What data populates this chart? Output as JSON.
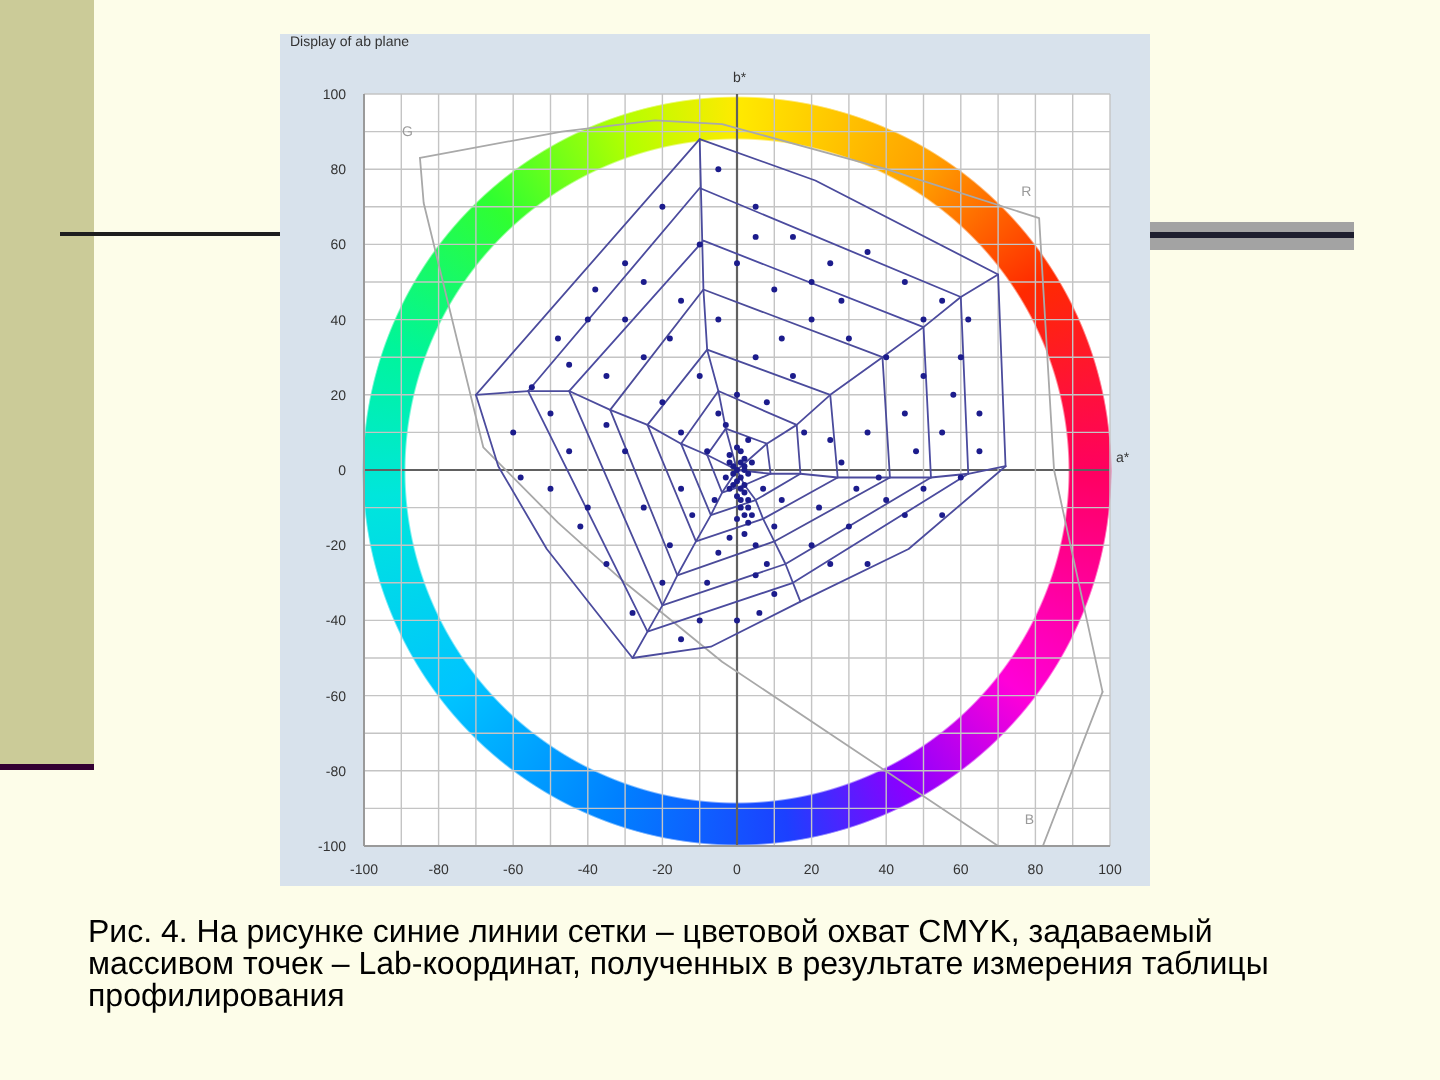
{
  "chart_data": {
    "type": "scatter",
    "title": "Display of ab plane",
    "xlabel": "a*",
    "ylabel": "b*",
    "xlim": [
      -100,
      100
    ],
    "ylim": [
      -100,
      100
    ],
    "xticks": [
      -100,
      {
        "value": -90,
        "label": null
      },
      -80,
      {
        "value": -70,
        "label": null
      },
      -60,
      {
        "value": -50,
        "label": null
      },
      -40,
      {
        "value": -30,
        "label": null
      },
      -20,
      {
        "value": -10,
        "label": null
      },
      0,
      {
        "value": 10,
        "label": null
      },
      20,
      {
        "value": 30,
        "label": null
      },
      40,
      {
        "value": 50,
        "label": null
      },
      60,
      {
        "value": 70,
        "label": null
      },
      80,
      {
        "value": 90,
        "label": null
      },
      100
    ],
    "yticks": [
      -100,
      {
        "value": -90,
        "label": null
      },
      -80,
      {
        "value": -70,
        "label": null
      },
      -60,
      {
        "value": -50,
        "label": null
      },
      -40,
      {
        "value": -30,
        "label": null
      },
      -20,
      {
        "value": -10,
        "label": null
      },
      0,
      {
        "value": 10,
        "label": null
      },
      20,
      {
        "value": 30,
        "label": null
      },
      40,
      {
        "value": 50,
        "label": null
      },
      60,
      {
        "value": 70,
        "label": null
      },
      80,
      {
        "value": 90,
        "label": null
      },
      100
    ],
    "grid": true,
    "marker": "circle",
    "annotations": [
      {
        "text": "G",
        "x": -85,
        "y": 83
      },
      {
        "text": "R",
        "x": 81,
        "y": 67
      },
      {
        "text": "B",
        "x": 82,
        "y": -100
      },
      "Рис. 4. На рисунке синие линии сетки – цветовой охват CMYK, задаваемый массивом точек – Lab-координат, полученных в результате измерения таблицы профилирования"
    ],
    "series": [
      {
        "type": "line",
        "marker": "none",
        "color": "#a8a8a8",
        "x": [
          -85,
          -84,
          -68,
          -48,
          -30,
          -4,
          70
        ],
        "values": [
          83,
          71,
          6,
          -14,
          -30,
          -51,
          -100
        ]
      },
      {
        "type": "line",
        "marker": "none",
        "color": "#a9a9a9",
        "x": [
          -85,
          -47,
          -22,
          -4,
          40,
          81,
          85,
          98
        ],
        "values": [
          83,
          90,
          93,
          92,
          80,
          67,
          0,
          -59
        ]
      },
      {
        "type": "line",
        "marker": "none",
        "color": "#a7a7a7",
        "x": [
          82,
          98
        ],
        "values": [
          -100,
          -59
        ]
      },
      {
        "type": "line",
        "marker": "none",
        "color": "#4b4b9c",
        "x": [
          -70,
          -10,
          21,
          70,
          72
        ],
        "values": [
          20,
          88,
          77,
          52,
          1
        ]
      },
      {
        "type": "line",
        "marker": "none",
        "color": "#4b4b9d",
        "x": [
          -70,
          -64,
          -51,
          -28,
          -7,
          17,
          46,
          72
        ],
        "values": [
          20,
          1,
          -21,
          -50,
          -47,
          -35,
          -21,
          1
        ]
      },
      {
        "type": "line",
        "marker": "none",
        "color": "#4b4b9e",
        "x": [
          -56,
          -10,
          60,
          62
        ],
        "values": [
          21,
          75,
          46,
          -1
        ]
      },
      {
        "type": "line",
        "marker": "none",
        "color": "#4b4b9f",
        "x": [
          -56,
          -24,
          15,
          62
        ],
        "values": [
          21,
          -43,
          -30,
          -1
        ]
      },
      {
        "type": "line",
        "marker": "none",
        "color": "#4b4ba0",
        "x": [
          -45,
          -9,
          50,
          52
        ],
        "values": [
          21,
          61,
          38,
          -2
        ]
      },
      {
        "type": "line",
        "marker": "none",
        "color": "#4b4b9b",
        "x": [
          -45,
          -20,
          13,
          52
        ],
        "values": [
          21,
          -36,
          -25,
          -2
        ]
      },
      {
        "type": "line",
        "marker": "none",
        "color": "#4b4b9a",
        "x": [
          -34,
          -9,
          39,
          41
        ],
        "values": [
          16,
          48,
          30,
          -2
        ]
      },
      {
        "type": "line",
        "marker": "none",
        "color": "#4b4b99",
        "x": [
          -34,
          -16,
          10,
          41
        ],
        "values": [
          16,
          -28,
          -19,
          -2
        ]
      },
      {
        "type": "line",
        "marker": "none",
        "color": "#4a4b9c",
        "x": [
          -24,
          -8,
          25,
          27
        ],
        "values": [
          12,
          32,
          20,
          -2
        ]
      },
      {
        "type": "line",
        "marker": "none",
        "color": "#4c4b9c",
        "x": [
          -24,
          -11,
          7,
          27
        ],
        "values": [
          12,
          -19,
          -13,
          -2
        ]
      },
      {
        "type": "line",
        "marker": "none",
        "color": "#4b4a9c",
        "x": [
          -15,
          -5,
          16,
          17
        ],
        "values": [
          7,
          21,
          12,
          -1
        ]
      },
      {
        "type": "line",
        "marker": "none",
        "color": "#4b4c9c",
        "x": [
          -15,
          -7,
          5,
          17
        ],
        "values": [
          7,
          -12,
          -8,
          -1
        ]
      },
      {
        "type": "line",
        "marker": "none",
        "color": "#4a4a9c",
        "x": [
          -8,
          -3,
          8,
          9
        ],
        "values": [
          4,
          11,
          7,
          -1
        ]
      },
      {
        "type": "line",
        "marker": "none",
        "color": "#4c4c9c",
        "x": [
          -8,
          -4,
          2,
          9
        ],
        "values": [
          4,
          -6,
          -4,
          -1
        ]
      },
      {
        "type": "line",
        "marker": "none",
        "color": "#4a4b9d",
        "x": [
          -10,
          -9,
          -8,
          -5,
          -3,
          0
        ],
        "values": [
          88,
          48,
          32,
          21,
          11,
          0
        ]
      },
      {
        "type": "line",
        "marker": "none",
        "color": "#4c4b9d",
        "x": [
          0,
          8,
          16,
          25,
          39,
          50,
          60,
          70
        ],
        "values": [
          0,
          7,
          12,
          20,
          30,
          38,
          46,
          52
        ]
      },
      {
        "type": "line",
        "marker": "none",
        "color": "#4b4a9d",
        "x": [
          0,
          9,
          17,
          27,
          41,
          52,
          62,
          72
        ],
        "values": [
          0,
          -1,
          -1,
          -2,
          -2,
          -2,
          -1,
          1
        ]
      },
      {
        "type": "line",
        "marker": "none",
        "color": "#4b4c9d",
        "x": [
          0,
          2,
          5,
          7,
          10,
          13,
          15,
          17
        ],
        "values": [
          0,
          -4,
          -8,
          -13,
          -19,
          -25,
          -30,
          -35
        ]
      },
      {
        "type": "line",
        "marker": "none",
        "color": "#4a4a9d",
        "x": [
          -28,
          -24,
          -20,
          -16,
          -11,
          -7,
          -4,
          0
        ],
        "values": [
          -50,
          -43,
          -36,
          -28,
          -19,
          -12,
          -6,
          0
        ]
      },
      {
        "type": "line",
        "marker": "none",
        "color": "#4c4c9d",
        "x": [
          -70,
          -56,
          -45,
          -34,
          -24,
          -15,
          -8,
          0
        ],
        "values": [
          20,
          21,
          21,
          16,
          12,
          7,
          4,
          0
        ]
      },
      {
        "color": "#1c1c8c",
        "x": [
          0,
          1,
          1,
          2,
          2,
          1,
          3,
          2,
          0,
          -1,
          -1,
          3,
          2,
          -2,
          1,
          3,
          2,
          -2,
          4,
          -3,
          1,
          0,
          1,
          0,
          2,
          -1,
          2,
          3,
          -2,
          0,
          -20,
          -5,
          5,
          15,
          25,
          -30,
          -15,
          0,
          10,
          35,
          45,
          55,
          -40,
          -25,
          -5,
          20,
          30,
          40,
          50,
          60,
          65,
          55,
          45,
          35,
          25,
          15,
          5,
          -10,
          -20,
          -35,
          -50,
          -60,
          -45,
          -30,
          -15,
          -25,
          -40,
          -50,
          -35,
          -20,
          -10,
          0,
          5,
          10,
          20,
          30,
          40,
          50,
          60,
          65,
          35,
          25,
          10,
          -10,
          -25,
          5,
          20,
          28,
          12,
          -5,
          8,
          18,
          28,
          38,
          48,
          58,
          62,
          50,
          -15,
          -35,
          -55,
          -45,
          -30,
          -18,
          -8,
          -12,
          -5,
          -18,
          -28,
          -15,
          5,
          12,
          22,
          32,
          45,
          55,
          6,
          -42,
          -58,
          -48,
          -38,
          0,
          3,
          -3,
          7,
          -6,
          4,
          -2,
          8,
          -8
        ],
        "values": [
          0,
          -2,
          2,
          -4,
          -6,
          -8,
          -10,
          -12,
          -3,
          1,
          -1,
          -1,
          3,
          4,
          5,
          -14,
          -17,
          -5,
          2,
          -2,
          -5,
          -7,
          -10,
          6,
          0,
          -4,
          1,
          -8,
          2,
          -13,
          70,
          80,
          70,
          62,
          55,
          55,
          45,
          55,
          48,
          58,
          50,
          45,
          40,
          30,
          40,
          40,
          35,
          30,
          25,
          30,
          15,
          10,
          15,
          10,
          8,
          25,
          30,
          25,
          18,
          25,
          15,
          10,
          5,
          5,
          -5,
          -10,
          -10,
          -5,
          -25,
          -30,
          -40,
          -40,
          -28,
          -15,
          -20,
          -15,
          -8,
          -5,
          -2,
          5,
          -25,
          -25,
          -33,
          60,
          50,
          62,
          50,
          45,
          35,
          15,
          18,
          10,
          2,
          -2,
          5,
          20,
          40,
          40,
          10,
          12,
          22,
          28,
          40,
          35,
          5,
          -12,
          -22,
          -20,
          -38,
          -45,
          -20,
          -8,
          -10,
          -5,
          -12,
          -12,
          -38,
          -15,
          -2,
          35,
          48,
          20,
          8,
          12,
          -5,
          -8,
          -12,
          -18,
          -25,
          -30
        ]
      }
    ]
  }
}
